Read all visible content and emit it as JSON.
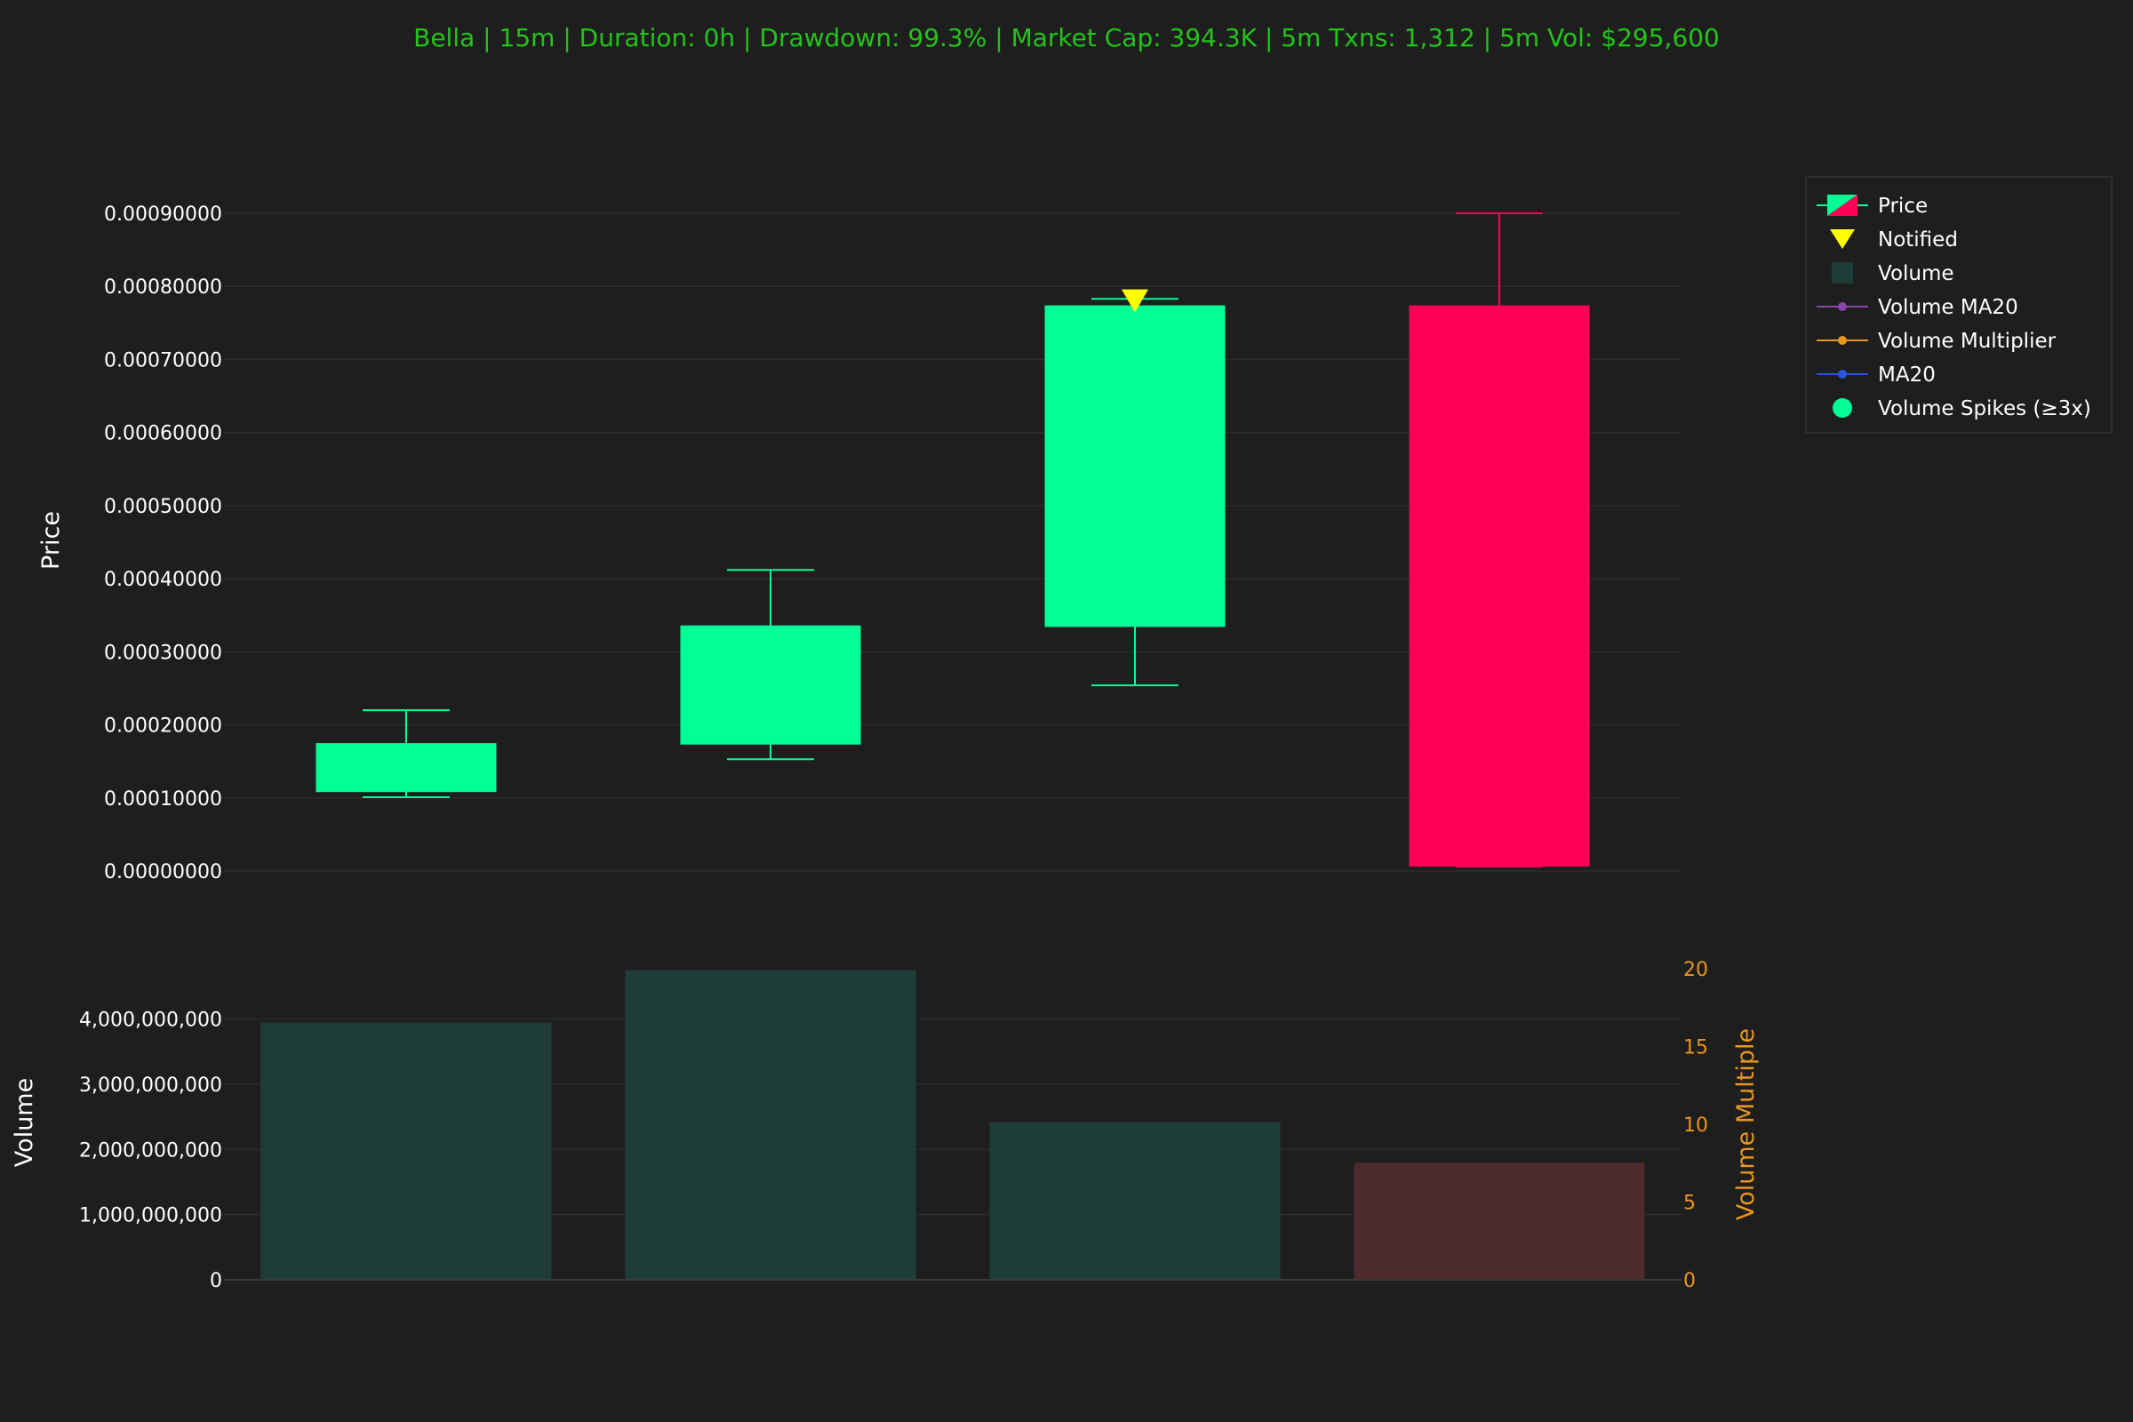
{
  "title": "Bella | 15m | Duration: 0h | Drawdown: 99.3% | Market Cap: 394.3K | 5m Txns: 1,312 | 5m Vol: $295,600",
  "colors": {
    "background": "#1e1e1e",
    "title": "#22c41a",
    "up": "#00ff95",
    "down": "#ff0055",
    "volume_up": "#1f3d38",
    "volume_down": "#4d2a2b",
    "notified": "#ffff00",
    "volume_ma20": "#8e44ad",
    "volume_multiplier": "#e8961e",
    "ma20": "#2a55e0",
    "secondary_axis": "#e8961e",
    "grid": "#2c2c2c"
  },
  "chart_data": {
    "type": "candlestick",
    "price_axis": {
      "label": "Price",
      "ylim": [
        0,
        0.0009
      ],
      "ticks": [
        "0.00000000",
        "0.00010000",
        "0.00020000",
        "0.00030000",
        "0.00040000",
        "0.00050000",
        "0.00060000",
        "0.00070000",
        "0.00080000",
        "0.00090000"
      ]
    },
    "candles": [
      {
        "open": 0.000108,
        "high": 0.00022,
        "low": 0.000101,
        "close": 0.000175
      },
      {
        "open": 0.000173,
        "high": 0.000412,
        "low": 0.000153,
        "close": 0.000336
      },
      {
        "open": 0.000334,
        "high": 0.000783,
        "low": 0.000254,
        "close": 0.000774
      },
      {
        "open": 0.000774,
        "high": 0.0009,
        "low": 6e-06,
        "close": 6e-06
      }
    ],
    "notified": [
      {
        "index": 2,
        "price": 0.00078
      }
    ],
    "volume_axis": {
      "label": "Volume",
      "ylim": [
        0,
        4800000000
      ],
      "ticks": [
        "0",
        "1,000,000,000",
        "2,000,000,000",
        "3,000,000,000",
        "4,000,000,000"
      ]
    },
    "volume": [
      3950000000,
      4750000000,
      2420000000,
      1800000000
    ],
    "volume_direction": [
      "up",
      "up",
      "up",
      "down"
    ],
    "multiplier_axis": {
      "label": "Volume Multiple",
      "ylim": [
        0,
        20
      ],
      "ticks": [
        "0",
        "5",
        "10",
        "15",
        "20"
      ]
    },
    "legend": {
      "placement": "top-right",
      "entries": [
        {
          "label": "Price",
          "marker": "candle"
        },
        {
          "label": "Notified",
          "marker": "triangle-down"
        },
        {
          "label": "Volume",
          "marker": "square"
        },
        {
          "label": "Volume MA20",
          "marker": "line-dot"
        },
        {
          "label": "Volume Multiplier",
          "marker": "line-dot"
        },
        {
          "label": "MA20",
          "marker": "line-dot"
        },
        {
          "label": "Volume Spikes (≥3x)",
          "marker": "circle"
        }
      ]
    },
    "grid": true
  }
}
